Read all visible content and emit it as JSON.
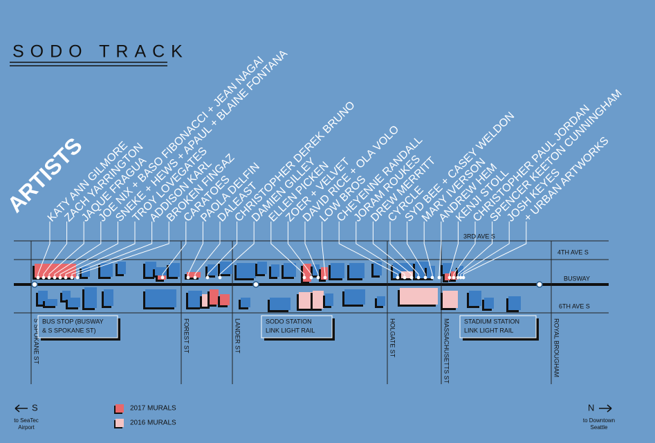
{
  "title": "SODO TRACK",
  "artists_heading": "ARTISTS",
  "artists": [
    "KATY ANN GILMORE",
    "ZACH YARRINGTON",
    "JAQUE FRAGUA",
    "JOE NIX + BASO FIBONACCI + JEAN NAGAI",
    "SNEKE + HEWS + APAUL + BLAINE FONTANA",
    "TROY LOVEGATES",
    "ADDISON KARL",
    "BROKEN FINGAZ",
    "CARATOES",
    "PAOLA DELFIN",
    "DALEAST",
    "CHRISTOPHER DEREK BRUNO",
    "DAMIEN GILLEY",
    "ELLEN PICKEN",
    "ZOER + VELVET",
    "DAVID RICE + OLA VOLO",
    "LOW BROS",
    "CHEYENNE RANDALL",
    "JORAM ROUKES",
    "DREW MERRITT",
    "CYRCLE",
    "SYD BEE + CASEY WELDON",
    "MARY IVERSON",
    "ANDREW HEM",
    "KENJI STOLL",
    "CHRISTOPHER PAUL JORDAN",
    "SPENCER KEETON CUNNINGHAM",
    "JOSH KEYES",
    "+ URBAN ARTWORKS"
  ],
  "avenues": [
    "3RD AVE S",
    "4TH AVE S",
    "BUSWAY",
    "6TH AVE S"
  ],
  "cross_streets": [
    "S SPOKANE ST",
    "FOREST ST",
    "LANDER ST",
    "HOLGATE ST",
    "MASSACHUSETTS ST",
    "ROYAL BROUGHAM"
  ],
  "stations": [
    {
      "lines": [
        "BUS STOP (BUSWAY",
        "& S SPOKANE  ST)"
      ]
    },
    {
      "lines": [
        "SODO STATION",
        "LINK LIGHT RAIL"
      ]
    },
    {
      "lines": [
        "STADIUM STATION",
        "LINK LIGHT RAIL"
      ]
    }
  ],
  "compass": {
    "south": {
      "letter": "S",
      "lines": [
        "to SeaTec",
        "Airport"
      ]
    },
    "north": {
      "letter": "N",
      "lines": [
        "to Downtown",
        "Seattle"
      ]
    }
  },
  "legend": [
    {
      "label": "2017 MURALS",
      "color": "#e8686b"
    },
    {
      "label": "2016 MURALS",
      "color": "#f5c4c4"
    }
  ]
}
